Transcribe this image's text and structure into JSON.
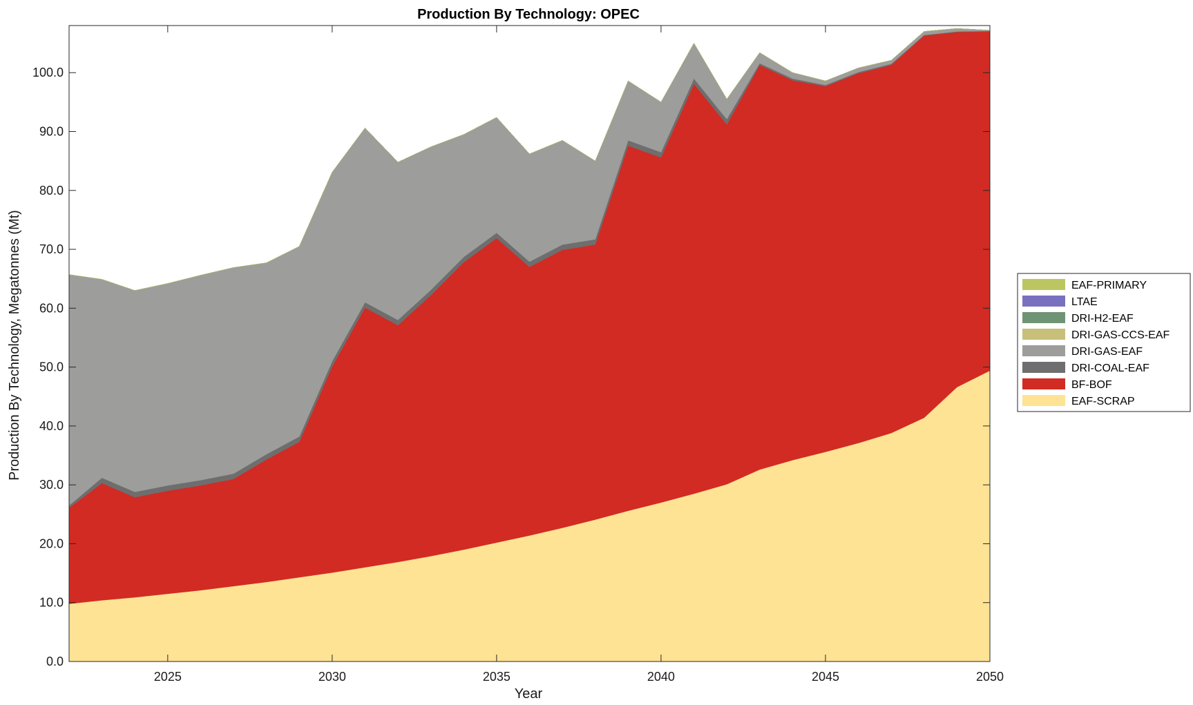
{
  "chart_data": {
    "type": "area",
    "stacked": true,
    "title": "Production By Technology: OPEC",
    "xlabel": "Year",
    "ylabel": "Production By Technology, Megatonnes (Mt)",
    "xlim": [
      2022,
      2050
    ],
    "ylim": [
      0,
      108
    ],
    "x_ticks": [
      2025,
      2030,
      2035,
      2040,
      2045,
      2050
    ],
    "y_ticks": [
      0,
      10,
      20,
      30,
      40,
      50,
      60,
      70,
      80,
      90,
      100
    ],
    "y_tick_labels": [
      "0.0",
      "10.0",
      "20.0",
      "30.0",
      "40.0",
      "50.0",
      "60.0",
      "70.0",
      "80.0",
      "90.0",
      "100.0"
    ],
    "legend_position": "right",
    "x": [
      2022,
      2023,
      2024,
      2025,
      2026,
      2027,
      2028,
      2029,
      2030,
      2031,
      2032,
      2033,
      2034,
      2035,
      2036,
      2037,
      2038,
      2039,
      2040,
      2041,
      2042,
      2043,
      2044,
      2045,
      2046,
      2047,
      2048,
      2049,
      2050
    ],
    "series": [
      {
        "name": "EAF-SCRAP",
        "color": "#fde393",
        "values": [
          9.8,
          10.4,
          10.9,
          11.5,
          12.1,
          12.8,
          13.5,
          14.3,
          15.1,
          16.0,
          16.9,
          17.9,
          19.0,
          20.2,
          21.4,
          22.7,
          24.1,
          25.6,
          27.0,
          28.5,
          30.1,
          32.6,
          34.2,
          35.6,
          37.1,
          38.8,
          41.4,
          46.6,
          49.4
        ]
      },
      {
        "name": "BF-BOF",
        "color": "#d12b24",
        "values": [
          16.3,
          19.9,
          17.0,
          17.5,
          17.8,
          18.2,
          20.8,
          23.0,
          35.0,
          44.1,
          40.2,
          44.3,
          48.8,
          51.7,
          45.6,
          47.2,
          46.7,
          62.0,
          58.6,
          69.6,
          61.1,
          68.7,
          64.5,
          62.1,
          62.8,
          62.5,
          64.9,
          60.3,
          57.6
        ]
      },
      {
        "name": "DRI-COAL-EAF",
        "color": "#6e6e6e",
        "values": [
          0.4,
          0.9,
          0.9,
          0.9,
          0.9,
          0.9,
          0.9,
          0.9,
          0.9,
          0.9,
          0.9,
          0.9,
          0.9,
          0.9,
          0.9,
          0.9,
          0.9,
          0.9,
          0.9,
          0.9,
          0.9,
          0.3,
          0.3,
          0.2,
          0.2,
          0.2,
          0.1,
          0.1,
          0.1
        ]
      },
      {
        "name": "DRI-GAS-EAF",
        "color": "#9d9d9b",
        "values": [
          39.2,
          33.7,
          34.2,
          34.3,
          34.8,
          35.0,
          32.5,
          32.3,
          32.1,
          29.6,
          26.8,
          24.3,
          20.8,
          19.6,
          18.3,
          17.7,
          13.3,
          10.1,
          8.5,
          6.0,
          3.4,
          1.8,
          1.0,
          0.7,
          0.7,
          0.6,
          0.6,
          0.5,
          0.1
        ]
      },
      {
        "name": "DRI-GAS-CCS-EAF",
        "color": "#c8bf7a",
        "values": [
          0,
          0,
          0,
          0,
          0,
          0,
          0,
          0,
          0,
          0,
          0,
          0,
          0,
          0,
          0,
          0,
          0,
          0,
          0,
          0,
          0,
          0,
          0,
          0,
          0,
          0,
          0,
          0,
          0
        ]
      },
      {
        "name": "DRI-H2-EAF",
        "color": "#6f9475",
        "values": [
          0,
          0,
          0,
          0,
          0,
          0,
          0,
          0,
          0,
          0,
          0,
          0,
          0,
          0,
          0,
          0,
          0,
          0,
          0,
          0,
          0,
          0,
          0,
          0,
          0,
          0,
          0,
          0,
          0
        ]
      },
      {
        "name": "LTAE",
        "color": "#7971bf",
        "values": [
          0,
          0,
          0,
          0,
          0,
          0,
          0,
          0,
          0,
          0,
          0,
          0,
          0,
          0,
          0,
          0,
          0,
          0,
          0,
          0,
          0,
          0,
          0,
          0,
          0,
          0,
          0,
          0,
          0
        ]
      },
      {
        "name": "EAF-PRIMARY",
        "color": "#bcc661",
        "values": [
          0,
          0,
          0,
          0,
          0,
          0,
          0,
          0,
          0,
          0,
          0,
          0,
          0,
          0,
          0,
          0,
          0,
          0,
          0,
          0,
          0,
          0,
          0,
          0,
          0,
          0,
          0,
          0,
          0
        ]
      }
    ],
    "legend_order": [
      "EAF-PRIMARY",
      "LTAE",
      "DRI-H2-EAF",
      "DRI-GAS-CCS-EAF",
      "DRI-GAS-EAF",
      "DRI-COAL-EAF",
      "BF-BOF",
      "EAF-SCRAP"
    ]
  }
}
